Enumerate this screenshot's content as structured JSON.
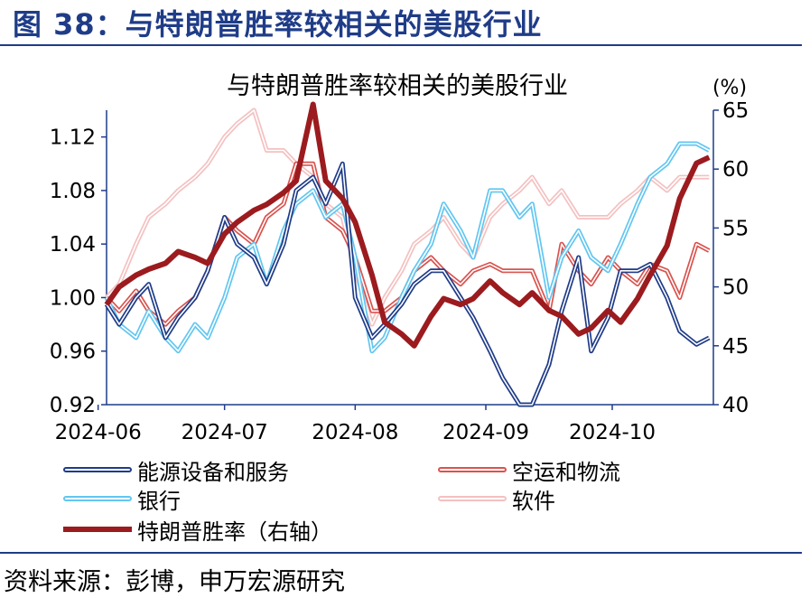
{
  "figure_title": "图 38：与特朗普胜率较相关的美股行业",
  "source": "资料来源：彭博，申万宏源研究",
  "chart_data": {
    "type": "line",
    "title": "与特朗普胜率较相关的美股行业",
    "x_ticks": [
      "2024-06",
      "2024-07",
      "2024-08",
      "2024-09",
      "2024-10"
    ],
    "left_axis": {
      "ylim": [
        0.92,
        1.14
      ],
      "ticks": [
        "0.92",
        "0.96",
        "1.00",
        "1.04",
        "1.08",
        "1.12"
      ]
    },
    "right_axis": {
      "unit": "(%)",
      "ylim": [
        40,
        65
      ],
      "ticks": [
        "40",
        "45",
        "50",
        "55",
        "60",
        "65"
      ]
    },
    "x": [
      "2024-06-03",
      "2024-06-06",
      "2024-06-10",
      "2024-06-13",
      "2024-06-17",
      "2024-06-20",
      "2024-06-24",
      "2024-06-27",
      "2024-07-01",
      "2024-07-04",
      "2024-07-08",
      "2024-07-11",
      "2024-07-15",
      "2024-07-18",
      "2024-07-22",
      "2024-07-25",
      "2024-07-29",
      "2024-08-01",
      "2024-08-05",
      "2024-08-08",
      "2024-08-12",
      "2024-08-15",
      "2024-08-19",
      "2024-08-22",
      "2024-08-26",
      "2024-08-29",
      "2024-09-02",
      "2024-09-05",
      "2024-09-09",
      "2024-09-12",
      "2024-09-16",
      "2024-09-19",
      "2024-09-23",
      "2024-09-26",
      "2024-09-30",
      "2024-10-03",
      "2024-10-07",
      "2024-10-10",
      "2024-10-14",
      "2024-10-17",
      "2024-10-21",
      "2024-10-24"
    ],
    "series": [
      {
        "name": "能源设备和服务",
        "axis": "left",
        "color": "#1f3c88",
        "style": "double",
        "values": [
          0.995,
          0.98,
          1.0,
          1.01,
          0.97,
          0.985,
          1.0,
          1.02,
          1.06,
          1.04,
          1.03,
          1.01,
          1.04,
          1.08,
          1.09,
          1.07,
          1.1,
          1.0,
          0.97,
          0.98,
          0.995,
          1.01,
          1.02,
          1.02,
          1.0,
          0.985,
          0.96,
          0.94,
          0.91,
          0.9,
          0.95,
          0.99,
          1.03,
          0.96,
          0.985,
          1.02,
          1.02,
          1.025,
          1.0,
          0.975,
          0.965,
          0.97
        ]
      },
      {
        "name": "空运和物流",
        "axis": "left",
        "color": "#d9534f",
        "style": "double",
        "values": [
          1.0,
          0.99,
          1.005,
          0.99,
          0.98,
          0.99,
          1.0,
          1.02,
          1.06,
          1.05,
          1.04,
          1.06,
          1.07,
          1.1,
          1.1,
          1.06,
          1.05,
          1.03,
          0.99,
          0.99,
          1.0,
          1.02,
          1.03,
          1.02,
          1.01,
          1.02,
          1.025,
          1.02,
          1.02,
          1.02,
          0.99,
          1.04,
          1.02,
          1.01,
          1.03,
          1.02,
          1.01,
          1.025,
          1.02,
          1.0,
          1.04,
          1.035
        ]
      },
      {
        "name": "银行",
        "axis": "left",
        "color": "#62c6f0",
        "style": "double",
        "values": [
          1.0,
          0.98,
          0.97,
          0.99,
          0.97,
          0.96,
          0.98,
          0.97,
          1.0,
          1.03,
          1.04,
          1.01,
          1.05,
          1.07,
          1.08,
          1.06,
          1.07,
          1.03,
          0.96,
          0.97,
          1.0,
          1.02,
          1.04,
          1.07,
          1.05,
          1.03,
          1.08,
          1.08,
          1.06,
          1.07,
          1.0,
          1.03,
          1.05,
          1.03,
          1.02,
          1.04,
          1.07,
          1.09,
          1.1,
          1.115,
          1.115,
          1.11
        ]
      },
      {
        "name": "软件",
        "axis": "left",
        "color": "#f4c1c1",
        "style": "double",
        "values": [
          1.0,
          1.01,
          1.04,
          1.06,
          1.07,
          1.08,
          1.09,
          1.1,
          1.12,
          1.13,
          1.14,
          1.11,
          1.11,
          1.1,
          1.09,
          1.07,
          1.06,
          1.02,
          0.98,
          1.0,
          1.02,
          1.04,
          1.05,
          1.06,
          1.04,
          1.03,
          1.06,
          1.07,
          1.08,
          1.09,
          1.07,
          1.08,
          1.06,
          1.06,
          1.06,
          1.07,
          1.08,
          1.09,
          1.08,
          1.09,
          1.09,
          1.09
        ]
      },
      {
        "name": "特朗普胜率（右轴）",
        "axis": "right",
        "color": "#9b1b1e",
        "style": "thick",
        "values": [
          48.5,
          50,
          51,
          51.5,
          52,
          53,
          52.5,
          52,
          54.5,
          55.5,
          56.5,
          57,
          58,
          59,
          65.5,
          59,
          57.5,
          55.5,
          51,
          47,
          46,
          45,
          47.5,
          49,
          48.5,
          49,
          50.5,
          49.5,
          48.5,
          49.5,
          48,
          47.5,
          46,
          46.5,
          48,
          47,
          49,
          51,
          53.5,
          57.5,
          60.5,
          61
        ]
      }
    ],
    "legend": [
      {
        "label": "能源设备和服务",
        "series": 0
      },
      {
        "label": "空运和物流",
        "series": 1
      },
      {
        "label": "银行",
        "series": 2
      },
      {
        "label": "软件",
        "series": 3
      },
      {
        "label": "特朗普胜率（右轴）",
        "series": 4
      }
    ]
  }
}
